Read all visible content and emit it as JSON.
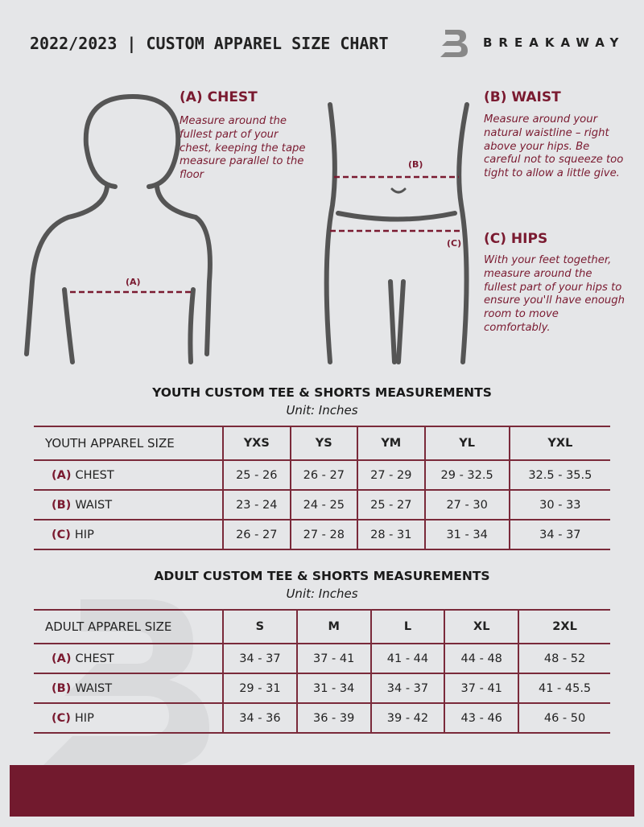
{
  "header": {
    "title": "2022/2023 | CUSTOM APPAREL SIZE CHART",
    "brand": "BREAKAWAY"
  },
  "colors": {
    "accent": "#721a2e",
    "background": "#e5e6e8"
  },
  "chest": {
    "heading": "(A) CHEST",
    "text": "Measure around the fullest part of your chest, keeping the tape measure parallel to the floor",
    "marker": "(A)"
  },
  "waist": {
    "heading": "(B) WAIST",
    "text": "Measure around your natural waistline – right above your hips. Be careful not to squeeze too tight to allow a little give.",
    "marker": "(B)"
  },
  "hips": {
    "heading": "(C) HIPS",
    "text": "With your feet together, measure around the fullest part of your hips to ensure you'll have enough room to move comfortably.",
    "marker": "(C)"
  },
  "youth": {
    "title": "YOUTH CUSTOM TEE & SHORTS MEASUREMENTS",
    "unit": "Unit: Inches",
    "size_label": "YOUTH APPAREL SIZE",
    "sizes": [
      "YXS",
      "YS",
      "YM",
      "YL",
      "YXL"
    ],
    "rows": [
      {
        "code": "(A)",
        "name": "CHEST",
        "values": [
          "25 - 26",
          "26 - 27",
          "27 - 29",
          "29 - 32.5",
          "32.5 - 35.5"
        ]
      },
      {
        "code": "(B)",
        "name": "WAIST",
        "values": [
          "23 - 24",
          "24 - 25",
          "25 - 27",
          "27 - 30",
          "30 - 33"
        ]
      },
      {
        "code": "(C)",
        "name": "HIP",
        "values": [
          "26 - 27",
          "27 - 28",
          "28 - 31",
          "31 - 34",
          "34 - 37"
        ]
      }
    ]
  },
  "adult": {
    "title": "ADULT CUSTOM TEE & SHORTS MEASUREMENTS",
    "unit": "Unit: Inches",
    "size_label": "ADULT APPAREL SIZE",
    "sizes": [
      "S",
      "M",
      "L",
      "XL",
      "2XL"
    ],
    "rows": [
      {
        "code": "(A)",
        "name": "CHEST",
        "values": [
          "34 - 37",
          "37 - 41",
          "41 - 44",
          "44 - 48",
          "48 - 52"
        ]
      },
      {
        "code": "(B)",
        "name": "WAIST",
        "values": [
          "29 - 31",
          "31 - 34",
          "34 - 37",
          "37 - 41",
          "41 - 45.5"
        ]
      },
      {
        "code": "(C)",
        "name": "HIP",
        "values": [
          "34 - 36",
          "36 - 39",
          "39 - 42",
          "43 - 46",
          "46 - 50"
        ]
      }
    ]
  }
}
